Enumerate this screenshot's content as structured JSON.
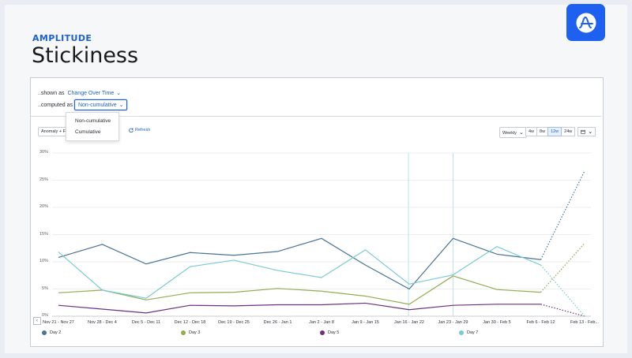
{
  "header": {
    "brand": "AMPLITUDE",
    "title": "Stickiness",
    "logo_icon": "amplitude-logo-icon"
  },
  "controls": {
    "shown_as_label": "..shown as",
    "shown_as_value": "Change Over Time",
    "computed_as_label": "..computed as",
    "computed_as_value": "Non-cumulative",
    "dropdown_options": [
      "Non-cumulative",
      "Cumulative"
    ]
  },
  "toolbar": {
    "anomaly_label": "Anomaly + Fo",
    "partial_label": "g",
    "refresh_label": "Refresh",
    "interval_label": "Weekly",
    "ranges": [
      "4w",
      "8w",
      "12w",
      "24w"
    ],
    "active_range": "12w"
  },
  "colors": {
    "accent": "#1e61cd",
    "day2": "#4a7396",
    "day3": "#93ac50",
    "day5": "#6d2f7f",
    "day7": "#79cbd2"
  },
  "chart_data": {
    "type": "line",
    "x": [
      "Nov 21 - Nov 27",
      "Nov 28 - Dec 4",
      "Dec 5 - Dec 11",
      "Dec 12 - Dec 18",
      "Dec 19 - Dec 25",
      "Dec 26 - Jan 1",
      "Jan 2 - Jan 8",
      "Jan 9 - Jan 15",
      "Jan 16 - Jan 22",
      "Jan 23 - Jan 29",
      "Jan 30 - Feb 5",
      "Feb 6 - Feb 12",
      "Feb 13 - Feb..."
    ],
    "y_ticks": [
      "0%",
      "5%",
      "10%",
      "15%",
      "20%",
      "25%",
      "30%"
    ],
    "ylim": [
      0,
      30
    ],
    "incomplete_from_index": 11,
    "series": [
      {
        "name": "Day 2",
        "color": "#4a7396",
        "values": [
          10.8,
          13.2,
          9.6,
          11.7,
          11.2,
          11.9,
          14.3,
          9.4,
          5.0,
          14.3,
          11.4,
          10.4,
          26.7
        ]
      },
      {
        "name": "Day 3",
        "color": "#93ac50",
        "values": [
          4.3,
          4.8,
          3.0,
          4.3,
          4.4,
          5.1,
          4.6,
          3.7,
          2.2,
          7.4,
          4.9,
          4.4,
          13.4
        ]
      },
      {
        "name": "Day 5",
        "color": "#6d2f7f",
        "values": [
          2.0,
          1.3,
          0.6,
          2.0,
          1.9,
          2.1,
          2.1,
          2.4,
          1.2,
          2.0,
          2.2,
          2.2,
          0.0
        ]
      },
      {
        "name": "Day 7",
        "color": "#79cbd2",
        "values": [
          11.8,
          4.8,
          3.3,
          9.1,
          10.3,
          8.4,
          7.1,
          12.2,
          5.9,
          7.6,
          12.8,
          9.4,
          0.0
        ]
      }
    ]
  }
}
